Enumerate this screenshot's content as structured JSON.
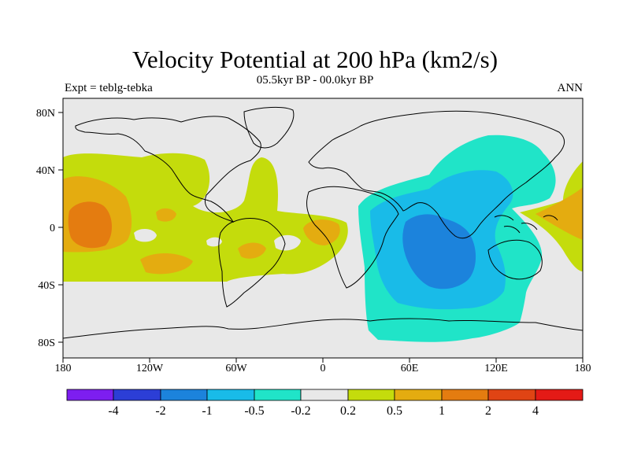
{
  "title": "Velocity Potential at 200 hPa (km2/s)",
  "subtitle": "05.5kyr BP - 00.0kyr BP",
  "left_label": "Expt = teblg-tebka",
  "right_label": "ANN",
  "y_ticks": [
    "80N",
    "40N",
    "0",
    "40S",
    "80S"
  ],
  "x_ticks": [
    "180",
    "120W",
    "60W",
    "0",
    "60E",
    "120E",
    "180"
  ],
  "colorbar": {
    "colors": [
      "#7d1ef0",
      "#2c3ed6",
      "#1c83dc",
      "#19bbe8",
      "#20e4c8",
      "#e8e8e8",
      "#c4dc0c",
      "#e4ac10",
      "#e47c10",
      "#e04414",
      "#e41a16"
    ],
    "labels": [
      "-4",
      "-2",
      "-1",
      "-0.5",
      "-0.2",
      "0.2",
      "0.5",
      "1",
      "2",
      "4"
    ]
  },
  "legend_colors": {
    "background": "#e8e8e8",
    "pos_0_5": "#c4dc0c",
    "pos_1": "#e4ac10",
    "pos_2": "#e47c10",
    "neg_0_2": "#20e4c8",
    "neg_0_5": "#19bbe8",
    "neg_1": "#1c83dc"
  }
}
